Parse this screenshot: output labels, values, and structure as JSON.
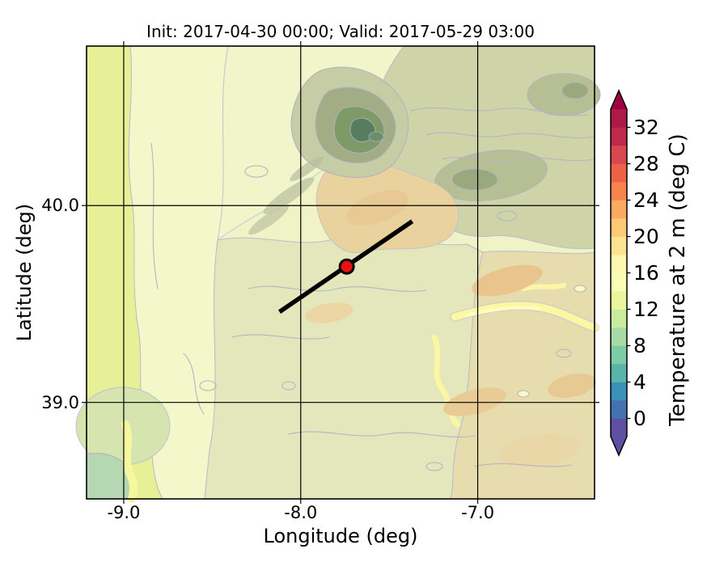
{
  "figure": {
    "title": "Init: 2017-04-30 00:00; Valid: 2017-05-29 03:00",
    "xlabel": "Longitude (deg)",
    "ylabel": "Latitude (deg)"
  },
  "axes": {
    "xlim": [
      -9.21,
      -6.34
    ],
    "ylim": [
      38.51,
      40.81
    ],
    "x_ticks": [
      {
        "value": -9.0,
        "label": "-9.0"
      },
      {
        "value": -8.0,
        "label": "-8.0"
      },
      {
        "value": -7.0,
        "label": "-7.0"
      }
    ],
    "y_ticks": [
      {
        "value": 40.0,
        "label": "40.0"
      },
      {
        "value": 39.0,
        "label": "39.0"
      }
    ],
    "grid_color": "#000000"
  },
  "colorbar": {
    "label": "Temperature at 2 m (deg C)",
    "ticks": [
      0,
      4,
      8,
      12,
      16,
      20,
      24,
      28,
      32
    ],
    "vmin": -2,
    "vmax": 34,
    "level_step": 2,
    "extend": "both",
    "colormap": "Spectral_r",
    "segment_colors": [
      "#5e4fa2",
      "#4471b2",
      "#3b92b9",
      "#5ab4ab",
      "#7ecca5",
      "#a7dba4",
      "#caea9e",
      "#e9f69d",
      "#f8fcb4",
      "#fff6b0",
      "#fee491",
      "#fec977",
      "#fcaa5f",
      "#f7844e",
      "#ed6246",
      "#d84850",
      "#c02a4a",
      "#ae1a47"
    ],
    "under_color": "#5e4fa2",
    "over_color": "#9e0142"
  },
  "overlay": {
    "cross_section": {
      "lon1": -8.12,
      "lat1": 39.46,
      "lon2": -7.37,
      "lat2": 39.92,
      "color": "#000000"
    },
    "marker": {
      "lon": -7.74,
      "lat": 39.69,
      "fill": "#e81010",
      "edge": "#000000"
    }
  },
  "chart_data": {
    "type": "heatmap",
    "subtype": "filled-contour-weather-map",
    "title": "Init: 2017-04-30 00:00; Valid: 2017-05-29 03:00",
    "xlabel": "Longitude (deg)",
    "ylabel": "Latitude (deg)",
    "xlim": [
      -9.21,
      -6.34
    ],
    "ylim": [
      38.51,
      40.81
    ],
    "x_ticks": [
      -9.0,
      -8.0,
      -7.0
    ],
    "y_ticks": [
      39.0,
      40.0
    ],
    "grid": true,
    "variable": "Temperature at 2 m (deg C)",
    "value_range": [
      -2,
      34
    ],
    "contour_interval_degC": 2,
    "colormap": "Spectral_r",
    "colorbar_ticks": [
      0,
      4,
      8,
      12,
      16,
      20,
      24,
      28,
      32
    ],
    "legend_position": "right-colorbar-with-extend-arrows",
    "features": [
      {
        "name": "cross-section-line",
        "type": "line",
        "from_lonlat": [
          -8.12,
          39.46
        ],
        "to_lonlat": [
          -7.37,
          39.92
        ]
      },
      {
        "name": "location-marker",
        "type": "point",
        "lonlat": [
          -7.74,
          39.69
        ]
      },
      {
        "name": "cool-mountain-core-top-center",
        "approx_lonlat": [
          -7.45,
          40.4
        ],
        "approx_value_c": 8
      },
      {
        "name": "olive-hills-northeast",
        "approx_value_c": 12
      },
      {
        "name": "pale-coastal-band-west",
        "approx_value_c": 14
      },
      {
        "name": "warm-valleys-east",
        "approx_value_c": 19
      }
    ]
  }
}
